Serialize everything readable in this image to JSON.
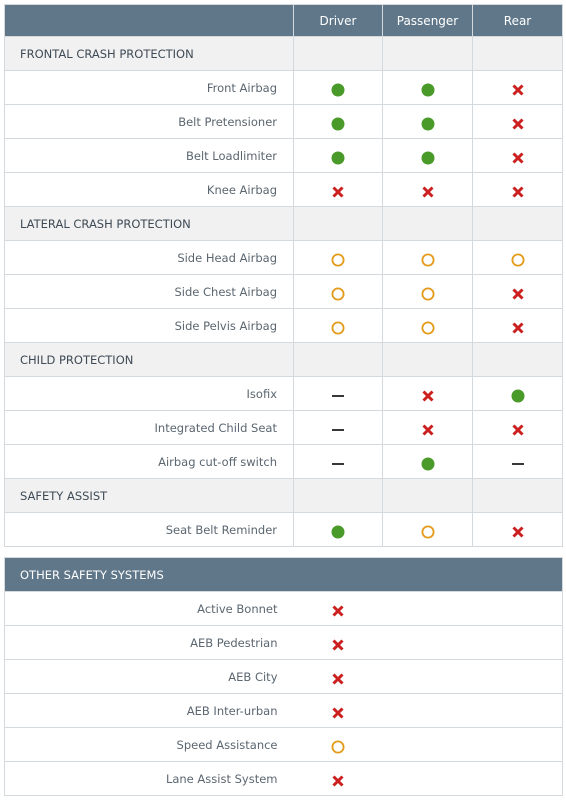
{
  "columns": [
    "Driver",
    "Passenger",
    "Rear"
  ],
  "sections": [
    {
      "title": "FRONTAL CRASH PROTECTION",
      "rows": [
        {
          "label": "Front Airbag",
          "values": [
            "yes",
            "yes",
            "no"
          ]
        },
        {
          "label": "Belt Pretensioner",
          "values": [
            "yes",
            "yes",
            "no"
          ]
        },
        {
          "label": "Belt Loadlimiter",
          "values": [
            "yes",
            "yes",
            "no"
          ]
        },
        {
          "label": "Knee Airbag",
          "values": [
            "no",
            "no",
            "no"
          ]
        }
      ]
    },
    {
      "title": "LATERAL CRASH PROTECTION",
      "rows": [
        {
          "label": "Side Head Airbag",
          "values": [
            "option",
            "option",
            "option"
          ]
        },
        {
          "label": "Side Chest Airbag",
          "values": [
            "option",
            "option",
            "no"
          ]
        },
        {
          "label": "Side Pelvis Airbag",
          "values": [
            "option",
            "option",
            "no"
          ]
        }
      ]
    },
    {
      "title": "CHILD PROTECTION",
      "rows": [
        {
          "label": "Isofix",
          "values": [
            "na",
            "no",
            "yes"
          ]
        },
        {
          "label": "Integrated Child Seat",
          "values": [
            "na",
            "no",
            "no"
          ]
        },
        {
          "label": "Airbag cut-off switch",
          "values": [
            "na",
            "yes",
            "na"
          ]
        }
      ]
    },
    {
      "title": "SAFETY ASSIST",
      "rows": [
        {
          "label": "Seat Belt Reminder",
          "values": [
            "yes",
            "option",
            "no"
          ]
        }
      ]
    }
  ],
  "other": {
    "title": "OTHER SAFETY SYSTEMS",
    "rows": [
      {
        "label": "Active Bonnet",
        "value": "no"
      },
      {
        "label": "AEB Pedestrian",
        "value": "no"
      },
      {
        "label": "AEB City",
        "value": "no"
      },
      {
        "label": "AEB Inter-urban",
        "value": "no"
      },
      {
        "label": "Speed Assistance",
        "value": "option"
      },
      {
        "label": "Lane Assist System",
        "value": "no"
      }
    ]
  },
  "colors": {
    "header": "#5f7789",
    "standard": "#4a9a2a",
    "not_available": "#cc1f1f",
    "option": "#e39b1a",
    "dash": "#222222"
  }
}
